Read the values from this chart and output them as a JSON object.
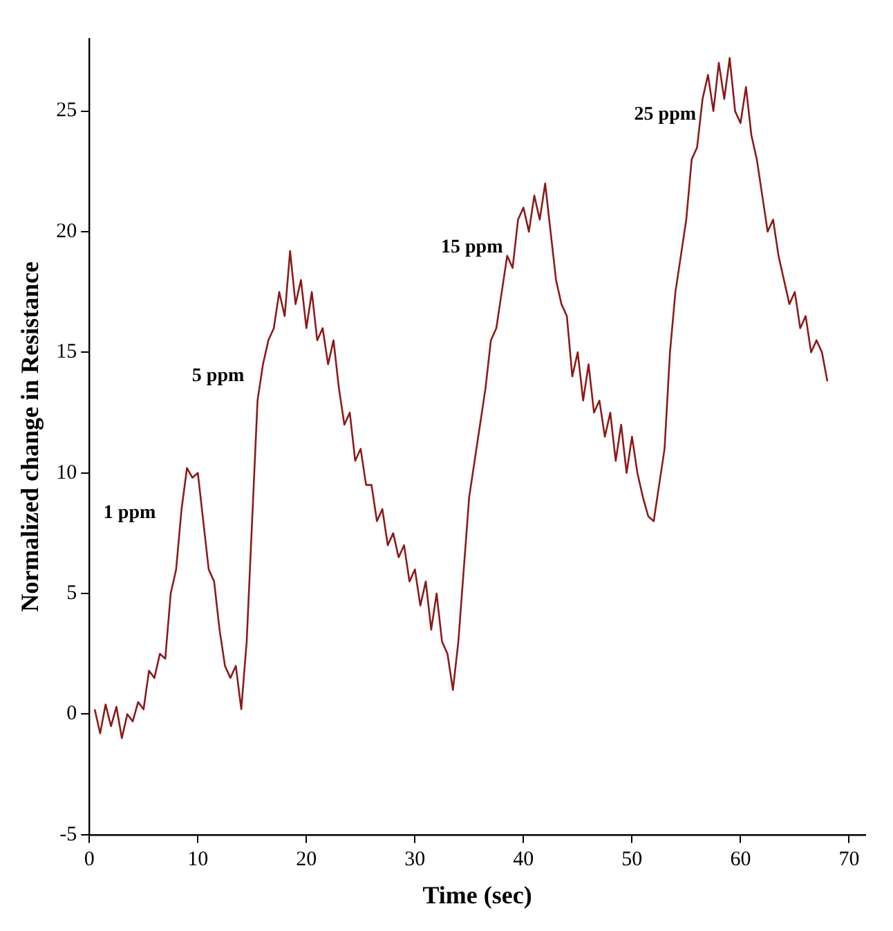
{
  "chart_data": {
    "type": "line",
    "xlabel": "Time (sec)",
    "ylabel": "Normalized change in Resistance",
    "xlim": [
      0,
      71.5
    ],
    "ylim": [
      -5,
      28
    ],
    "xticks": [
      0,
      10,
      20,
      30,
      40,
      50,
      60,
      70
    ],
    "yticks": [
      -5,
      0,
      5,
      10,
      15,
      20,
      25
    ],
    "grid": false,
    "legend": false,
    "marker": "none",
    "line_style": "solid",
    "annotations": [
      "1 ppm",
      "5 ppm",
      "15 ppm",
      "25 ppm"
    ],
    "series": [
      {
        "color": "#8b1a1a",
        "x": [
          0.5,
          1,
          1.5,
          2,
          2.5,
          3,
          3.5,
          4,
          4.5,
          5,
          5.5,
          6,
          6.5,
          7,
          7.5,
          8,
          8.5,
          9,
          9.5,
          10,
          10.5,
          11,
          11.5,
          12,
          12.5,
          13,
          13.5,
          14,
          14.5,
          15,
          15.5,
          16,
          16.5,
          17,
          17.5,
          18,
          18.5,
          19,
          19.5,
          20,
          20.5,
          21,
          21.5,
          22,
          22.5,
          23,
          23.5,
          24,
          24.5,
          25,
          25.5,
          26,
          26.5,
          27,
          27.5,
          28,
          28.5,
          29,
          29.5,
          30,
          30.5,
          31,
          31.5,
          32,
          32.5,
          33,
          33.5,
          34,
          34.5,
          35,
          35.5,
          36,
          36.5,
          37,
          37.5,
          38,
          38.5,
          39,
          39.5,
          40,
          40.5,
          41,
          41.5,
          42,
          42.5,
          43,
          43.5,
          44,
          44.5,
          45,
          45.5,
          46,
          46.5,
          47,
          47.5,
          48,
          48.5,
          49,
          49.5,
          50,
          50.5,
          51,
          51.5,
          52,
          52.5,
          53,
          53.5,
          54,
          54.5,
          55,
          55.5,
          56,
          56.5,
          57,
          57.5,
          58,
          58.5,
          59,
          59.5,
          60,
          60.5,
          61,
          61.5,
          62,
          62.5,
          63,
          63.5,
          64,
          64.5,
          65,
          65.5,
          66,
          66.5,
          67,
          67.5,
          68
        ],
        "values": [
          0.2,
          -0.8,
          0.4,
          -0.5,
          0.3,
          -1.0,
          0.0,
          -0.3,
          0.5,
          0.2,
          1.8,
          1.5,
          2.5,
          2.3,
          5,
          6,
          8.5,
          10.2,
          9.8,
          10,
          8,
          6,
          5.5,
          3.5,
          2,
          1.5,
          2,
          0.2,
          3,
          8,
          13,
          14.5,
          15.5,
          16,
          17.5,
          16.5,
          19.2,
          17,
          18,
          16,
          17.5,
          15.5,
          16,
          14.5,
          15.5,
          13.5,
          12,
          12.5,
          10.5,
          11,
          9.5,
          9.5,
          8,
          8.5,
          7,
          7.5,
          6.5,
          7,
          5.5,
          6,
          4.5,
          5.5,
          3.5,
          5,
          3,
          2.5,
          1,
          3,
          6,
          9,
          10.5,
          12,
          13.5,
          15.5,
          16,
          17.5,
          19,
          18.5,
          20.5,
          21,
          20,
          21.5,
          20.5,
          22,
          20,
          18,
          17,
          16.5,
          14,
          15,
          13,
          14.5,
          12.5,
          13,
          11.5,
          12.5,
          10.5,
          12,
          10,
          11.5,
          10,
          9,
          8.2,
          8,
          9.5,
          11,
          15,
          17.5,
          19,
          20.5,
          23,
          23.5,
          25.5,
          26.5,
          25,
          27,
          25.5,
          27.2,
          25,
          24.5,
          26,
          24,
          23,
          21.5,
          20,
          20.5,
          19,
          18,
          17,
          17.5,
          16,
          16.5,
          15,
          15.5,
          15,
          13.8
        ]
      }
    ]
  }
}
